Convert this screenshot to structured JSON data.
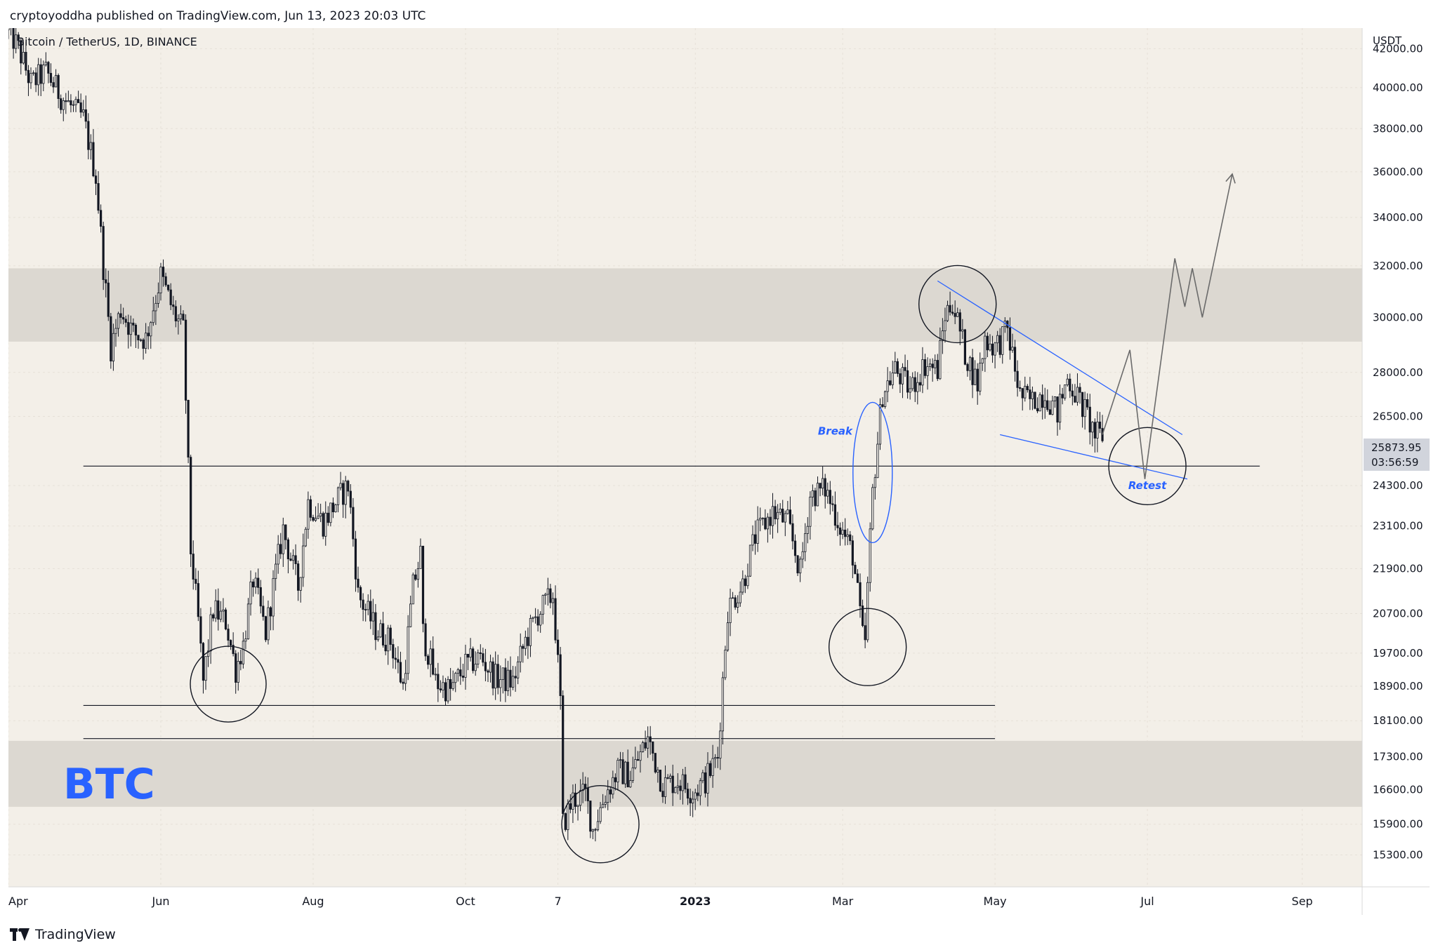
{
  "header": {
    "published_text": "cryptoyoddha published on TradingView.com, Jun 13, 2023 20:03 UTC"
  },
  "footer": {
    "brand": "TradingView"
  },
  "colors": {
    "background": "#f3efe8",
    "zone": "#dcd8d1",
    "candle": "#131722",
    "blue": "#2962ff",
    "price_tag": "#d1d4dc"
  },
  "icons": [
    "tradingview-logo-icon"
  ],
  "chart_data": {
    "type": "candlestick",
    "symbol_label": "Bitcoin / TetherUS, 1D, BINANCE",
    "watermark": "BTC",
    "axis_currency": "USDT",
    "x_range": [
      "2022-04-01",
      "2023-09-25"
    ],
    "y_range": [
      14700,
      43100
    ],
    "y_scale": "log",
    "y_ticks": [
      42000,
      40000,
      38000,
      36000,
      34000,
      32000,
      30000,
      28000,
      26500,
      24300,
      23100,
      21900,
      20700,
      19700,
      18900,
      18100,
      17300,
      16600,
      15900,
      15300
    ],
    "x_ticks": [
      {
        "label": "Apr",
        "date": "2022-04-01",
        "bold": false
      },
      {
        "label": "Jun",
        "date": "2022-06-01",
        "bold": false
      },
      {
        "label": "Aug",
        "date": "2022-08-01",
        "bold": false
      },
      {
        "label": "Oct",
        "date": "2022-10-01",
        "bold": false
      },
      {
        "label": "7",
        "date": "2022-11-07",
        "bold": false
      },
      {
        "label": "2023",
        "date": "2023-01-01",
        "bold": true
      },
      {
        "label": "Mar",
        "date": "2023-03-01",
        "bold": false
      },
      {
        "label": "May",
        "date": "2023-05-01",
        "bold": false
      },
      {
        "label": "Jul",
        "date": "2023-07-01",
        "bold": false
      },
      {
        "label": "Sep",
        "date": "2023-09-01",
        "bold": false
      }
    ],
    "grid": true,
    "current_price": {
      "value": 25873.95,
      "label": "25873.95",
      "countdown": "03:56:59"
    },
    "price_path": [
      [
        "2022-04-01",
        43000
      ],
      [
        "2022-04-05",
        42000
      ],
      [
        "2022-04-10",
        40200
      ],
      [
        "2022-04-16",
        40800
      ],
      [
        "2022-04-22",
        39600
      ],
      [
        "2022-04-28",
        38800
      ],
      [
        "2022-05-01",
        38500
      ],
      [
        "2022-05-06",
        35800
      ],
      [
        "2022-05-09",
        32000
      ],
      [
        "2022-05-12",
        28900
      ],
      [
        "2022-05-16",
        30300
      ],
      [
        "2022-05-21",
        29400
      ],
      [
        "2022-05-26",
        29200
      ],
      [
        "2022-06-01",
        31600
      ],
      [
        "2022-06-06",
        30200
      ],
      [
        "2022-06-10",
        29500
      ],
      [
        "2022-06-13",
        22400
      ],
      [
        "2022-06-16",
        20500
      ],
      [
        "2022-06-18",
        19000
      ],
      [
        "2022-06-22",
        20800
      ],
      [
        "2022-06-27",
        20500
      ],
      [
        "2022-07-01",
        19300
      ],
      [
        "2022-07-04",
        19900
      ],
      [
        "2022-07-08",
        21600
      ],
      [
        "2022-07-13",
        20200
      ],
      [
        "2022-07-20",
        23000
      ],
      [
        "2022-07-26",
        21400
      ],
      [
        "2022-07-30",
        23800
      ],
      [
        "2022-08-05",
        23200
      ],
      [
        "2022-08-11",
        23900
      ],
      [
        "2022-08-15",
        24300
      ],
      [
        "2022-08-19",
        21200
      ],
      [
        "2022-08-26",
        20300
      ],
      [
        "2022-09-01",
        20000
      ],
      [
        "2022-09-06",
        18900
      ],
      [
        "2022-09-10",
        21400
      ],
      [
        "2022-09-13",
        22300
      ],
      [
        "2022-09-14",
        20200
      ],
      [
        "2022-09-19",
        19000
      ],
      [
        "2022-09-25",
        18800
      ],
      [
        "2022-10-01",
        19400
      ],
      [
        "2022-10-07",
        19600
      ],
      [
        "2022-10-13",
        19100
      ],
      [
        "2022-10-20",
        19000
      ],
      [
        "2022-10-25",
        20000
      ],
      [
        "2022-10-30",
        20700
      ],
      [
        "2022-11-05",
        21200
      ],
      [
        "2022-11-08",
        18500
      ],
      [
        "2022-11-09",
        15900
      ],
      [
        "2022-11-13",
        16400
      ],
      [
        "2022-11-18",
        16500
      ],
      [
        "2022-11-21",
        15800
      ],
      [
        "2022-11-26",
        16500
      ],
      [
        "2022-12-01",
        17000
      ],
      [
        "2022-12-06",
        16900
      ],
      [
        "2022-12-13",
        17700
      ],
      [
        "2022-12-19",
        16700
      ],
      [
        "2022-12-25",
        16800
      ],
      [
        "2022-12-31",
        16550
      ],
      [
        "2023-01-05",
        16800
      ],
      [
        "2023-01-10",
        17300
      ],
      [
        "2023-01-14",
        20800
      ],
      [
        "2023-01-20",
        21500
      ],
      [
        "2023-01-25",
        22800
      ],
      [
        "2023-02-01",
        23500
      ],
      [
        "2023-02-07",
        23200
      ],
      [
        "2023-02-12",
        21800
      ],
      [
        "2023-02-16",
        24000
      ],
      [
        "2023-02-22",
        24200
      ],
      [
        "2023-02-28",
        23100
      ],
      [
        "2023-03-05",
        22300
      ],
      [
        "2023-03-09",
        20100
      ],
      [
        "2023-03-10",
        20000
      ],
      [
        "2023-03-13",
        24100
      ],
      [
        "2023-03-17",
        27300
      ],
      [
        "2023-03-22",
        28100
      ],
      [
        "2023-03-28",
        27400
      ],
      [
        "2023-04-03",
        28300
      ],
      [
        "2023-04-08",
        28100
      ],
      [
        "2023-04-11",
        30100
      ],
      [
        "2023-04-14",
        30600
      ],
      [
        "2023-04-19",
        28700
      ],
      [
        "2023-04-24",
        27600
      ],
      [
        "2023-04-27",
        29200
      ],
      [
        "2023-05-01",
        28900
      ],
      [
        "2023-05-06",
        29500
      ],
      [
        "2023-05-11",
        27200
      ],
      [
        "2023-05-16",
        27000
      ],
      [
        "2023-05-21",
        27300
      ],
      [
        "2023-05-26",
        26600
      ],
      [
        "2023-05-30",
        27800
      ],
      [
        "2023-06-04",
        27000
      ],
      [
        "2023-06-07",
        26500
      ],
      [
        "2023-06-10",
        25900
      ],
      [
        "2023-06-13",
        25874
      ]
    ],
    "zones": [
      {
        "from": 29100,
        "to": 31900
      },
      {
        "from": 16250,
        "to": 17650
      }
    ],
    "horizontal_lines": [
      {
        "price": 24900,
        "from": "2022-05-01",
        "to": "2023-08-15"
      },
      {
        "price": 18450,
        "from": "2022-05-01",
        "to": "2023-05-01"
      },
      {
        "price": 17700,
        "from": "2022-05-01",
        "to": "2023-05-01"
      }
    ],
    "trendlines": [
      {
        "from": [
          "2023-04-08",
          31400
        ],
        "to": [
          "2023-07-15",
          25900
        ]
      },
      {
        "from": [
          "2023-05-03",
          25900
        ],
        "to": [
          "2023-07-17",
          24500
        ]
      }
    ],
    "projection_path": [
      [
        "2023-06-13",
        25900
      ],
      [
        "2023-06-24",
        28800
      ],
      [
        "2023-06-30",
        24500
      ],
      [
        "2023-07-12",
        32300
      ],
      [
        "2023-07-16",
        30400
      ],
      [
        "2023-07-19",
        31900
      ],
      [
        "2023-07-23",
        30000
      ],
      [
        "2023-08-04",
        35900
      ]
    ],
    "annotations": [
      {
        "label": "Break",
        "date": "2023-02-26",
        "price": 25900
      },
      {
        "label": "Retest",
        "date": "2023-07-01",
        "price": 24200
      }
    ],
    "ellipses": [
      {
        "date": "2022-06-28",
        "price": 18950,
        "style": "black"
      },
      {
        "date": "2022-11-24",
        "price": 15900,
        "style": "black"
      },
      {
        "date": "2023-03-11",
        "price": 19850,
        "style": "black"
      },
      {
        "date": "2023-04-16",
        "price": 30500,
        "style": "black"
      },
      {
        "date": "2023-03-13",
        "price": 24700,
        "style": "blue"
      },
      {
        "date": "2023-07-01",
        "price": 24900,
        "style": "black"
      }
    ]
  }
}
